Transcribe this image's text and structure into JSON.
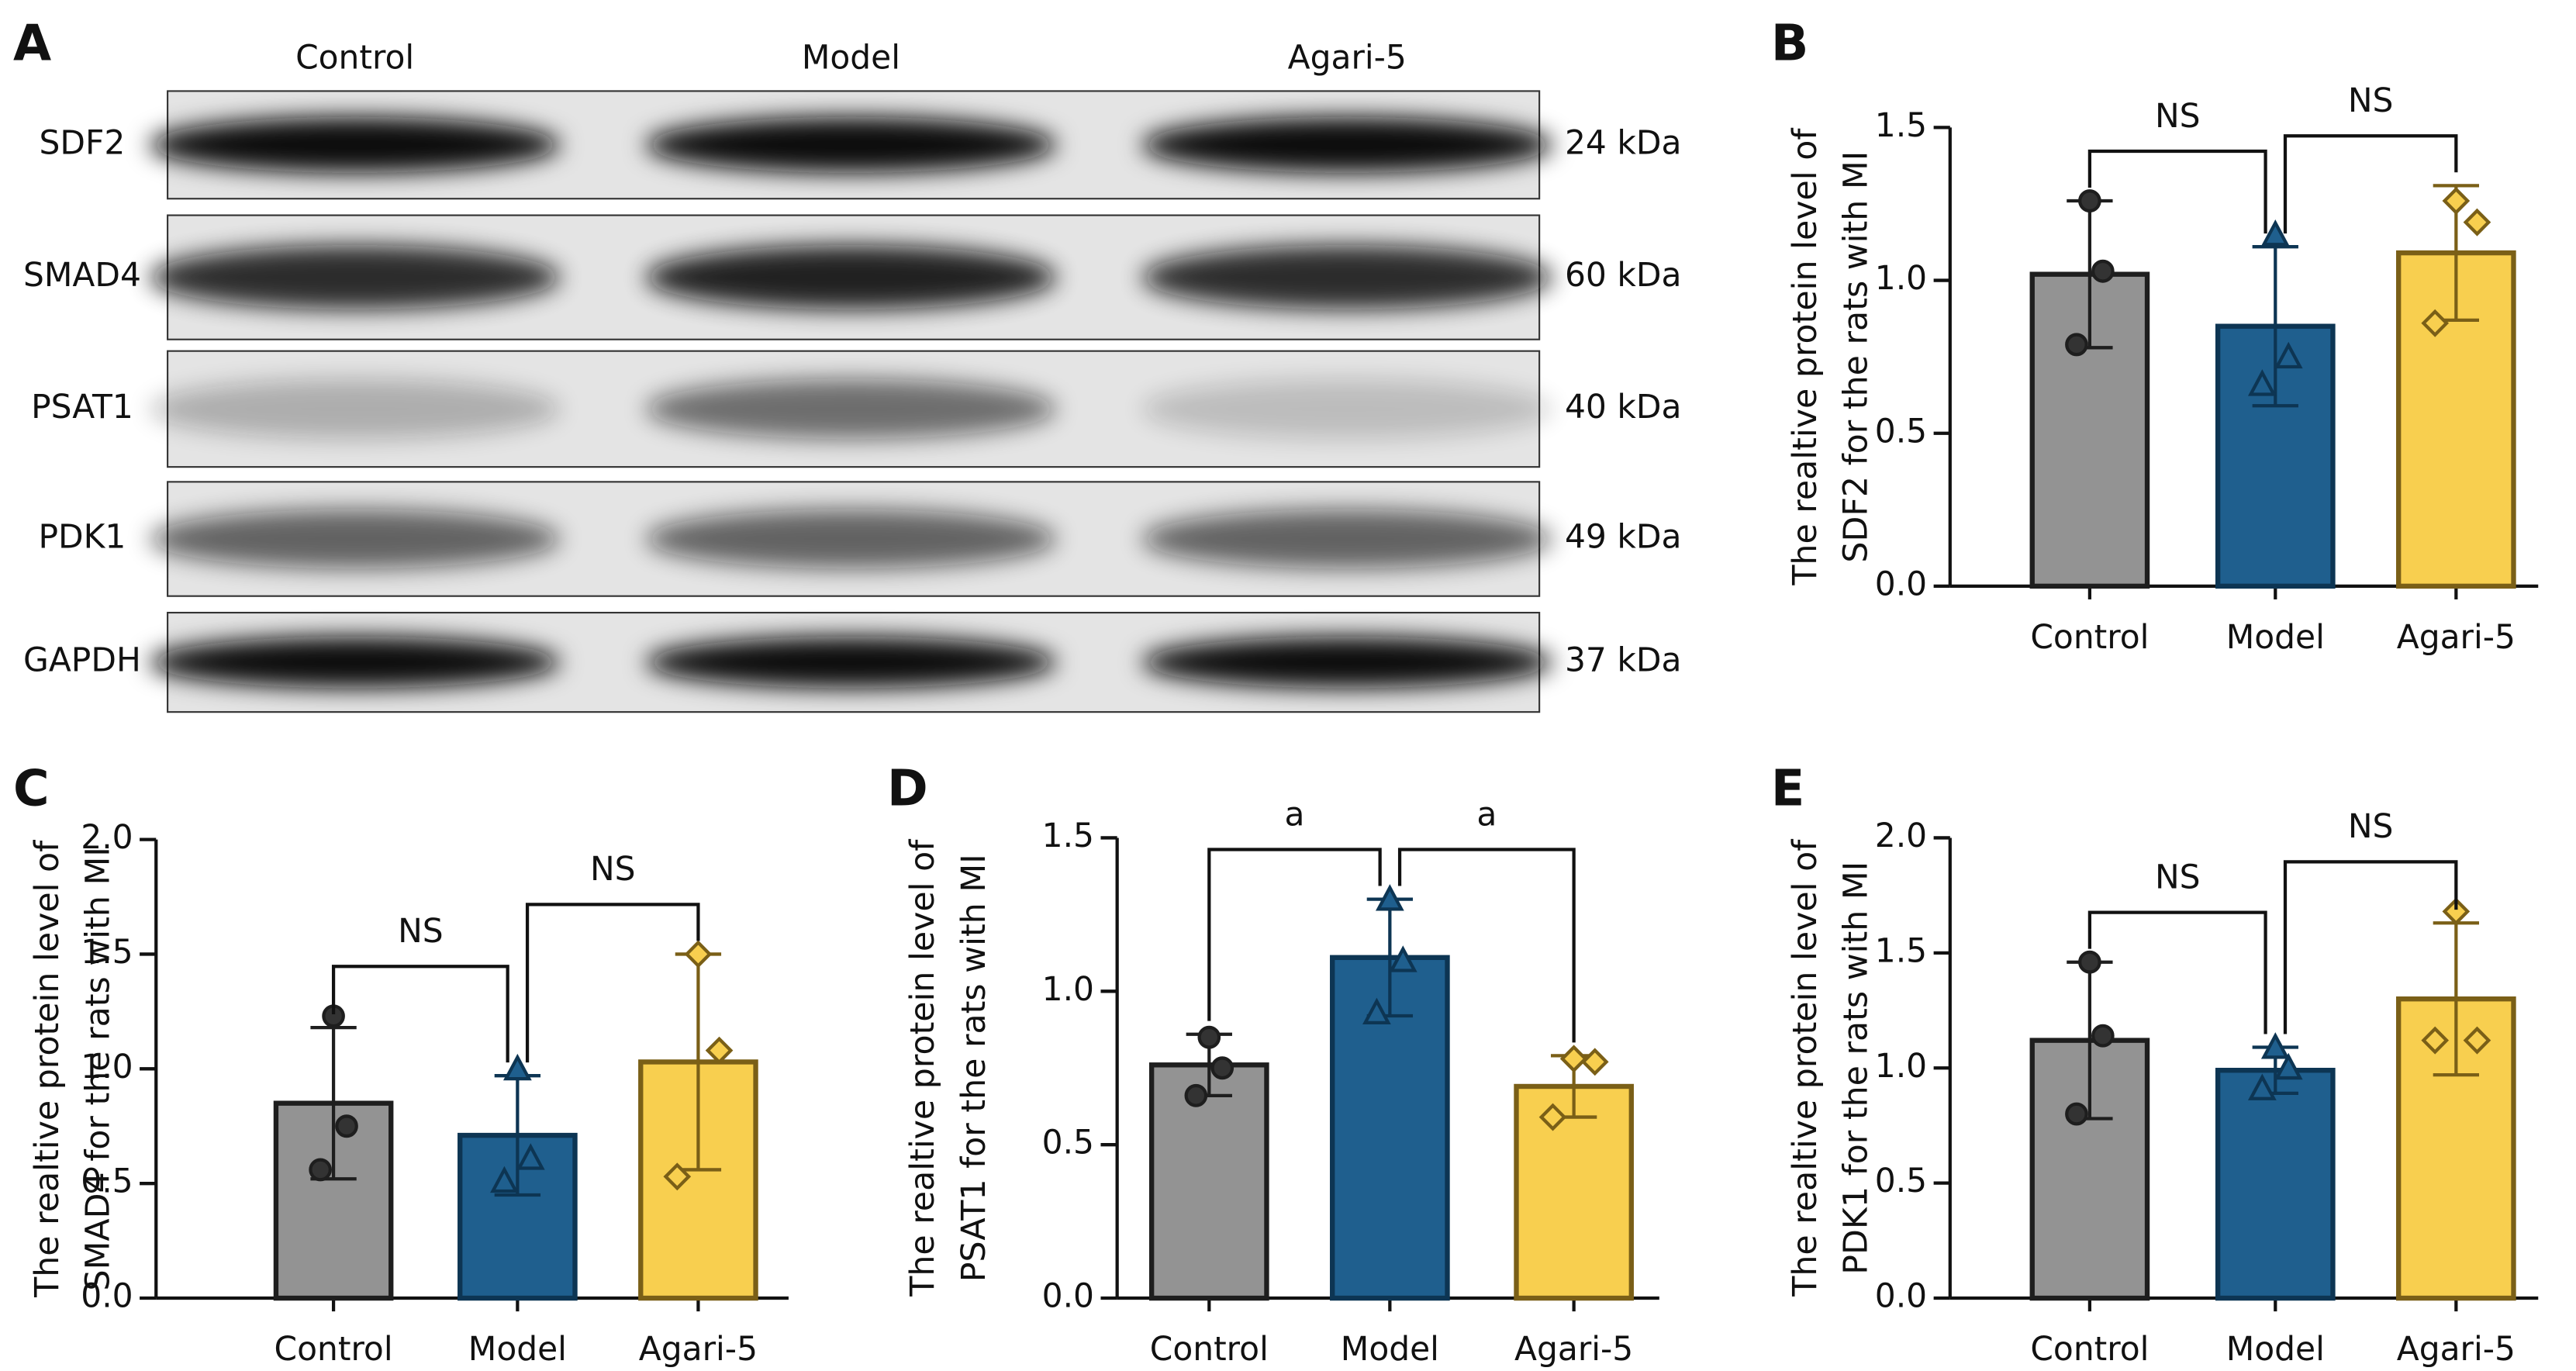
{
  "blot": {
    "panel": "A",
    "lanes": [
      "Control",
      "Model",
      "Agari-5"
    ],
    "rows": [
      {
        "name": "SDF2",
        "size": "24 kDa"
      },
      {
        "name": "SMAD4",
        "size": "60 kDa"
      },
      {
        "name": "PSAT1",
        "size": "40 kDa"
      },
      {
        "name": "PDK1",
        "size": "49 kDa"
      },
      {
        "name": "GAPDH",
        "size": "37 kDa"
      }
    ]
  },
  "chart_data": [
    {
      "type": "bar",
      "panel": "B",
      "ylabel": [
        "The realtive protein level of",
        "SDF2 for the rats with MI"
      ],
      "categories": [
        "Control",
        "Model",
        "Agari-5"
      ],
      "colors": [
        "#939393",
        "#1f5f8e",
        "#f8cf4f"
      ],
      "values": [
        1.02,
        0.85,
        1.09
      ],
      "errors": [
        0.24,
        0.26,
        0.22
      ],
      "points": [
        [
          1.26,
          1.03,
          0.79
        ],
        [
          1.15,
          0.75,
          0.66
        ],
        [
          1.26,
          1.19,
          0.86
        ]
      ],
      "annotations": [
        "NS",
        "NS"
      ],
      "ylim": [
        0,
        1.5
      ],
      "yticks": [
        {
          "value": 0,
          "label": "0.0"
        },
        0.5,
        {
          "value": 1,
          "label": "1.0"
        },
        1.5
      ]
    },
    {
      "type": "bar",
      "panel": "C",
      "ylabel": [
        "The realtive protein level of",
        "SMAD4 for the rats with MI"
      ],
      "categories": [
        "Control",
        "Model",
        "Agari-5"
      ],
      "colors": [
        "#939393",
        "#1f5f8e",
        "#f8cf4f"
      ],
      "values": [
        0.85,
        0.71,
        1.03
      ],
      "errors": [
        0.33,
        0.26,
        0.47
      ],
      "points": [
        [
          1.23,
          0.75,
          0.56
        ],
        [
          1.0,
          0.61,
          0.51
        ],
        [
          1.5,
          1.08,
          0.53
        ]
      ],
      "annotations": [
        "NS",
        "NS"
      ],
      "ylim": [
        0,
        2
      ],
      "yticks": [
        {
          "value": 0,
          "label": "0.0"
        },
        0.5,
        {
          "value": 1,
          "label": "1.0"
        },
        1.5,
        {
          "value": 2,
          "label": "2.0"
        }
      ]
    },
    {
      "type": "bar",
      "panel": "D",
      "ylabel": [
        "The realtive protein level of",
        "PSAT1 for the rats with MI"
      ],
      "categories": [
        "Control",
        "Model",
        "Agari-5"
      ],
      "colors": [
        "#939393",
        "#1f5f8e",
        "#f8cf4f"
      ],
      "values": [
        0.76,
        1.11,
        0.69
      ],
      "errors": [
        0.1,
        0.19,
        0.1
      ],
      "points": [
        [
          0.85,
          0.75,
          0.66
        ],
        [
          1.3,
          1.1,
          0.93
        ],
        [
          0.78,
          0.77,
          0.59
        ]
      ],
      "annotations": [
        "a",
        "a"
      ],
      "ylim": [
        0,
        1.5
      ],
      "yticks": [
        {
          "value": 0,
          "label": "0.0"
        },
        0.5,
        {
          "value": 1,
          "label": "1.0"
        },
        1.5
      ]
    },
    {
      "type": "bar",
      "panel": "E",
      "ylabel": [
        "The realtive protein level of",
        "PDK1 for the rats with MI"
      ],
      "categories": [
        "Control",
        "Model",
        "Agari-5"
      ],
      "colors": [
        "#939393",
        "#1f5f8e",
        "#f8cf4f"
      ],
      "values": [
        1.12,
        0.99,
        1.3
      ],
      "errors": [
        0.34,
        0.1,
        0.33
      ],
      "points": [
        [
          1.46,
          1.14,
          0.8
        ],
        [
          1.09,
          1.0,
          0.91
        ],
        [
          1.68,
          1.12,
          1.12
        ]
      ],
      "annotations": [
        "NS",
        "NS"
      ],
      "ylim": [
        0,
        2
      ],
      "yticks": [
        {
          "value": 0,
          "label": "0.0"
        },
        0.5,
        {
          "value": 1,
          "label": "1.0"
        },
        1.5,
        {
          "value": 2,
          "label": "2.0"
        }
      ]
    }
  ]
}
